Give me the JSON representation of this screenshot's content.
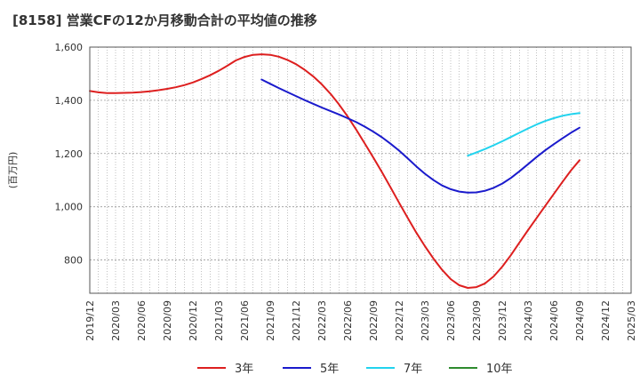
{
  "chart_data": {
    "type": "line",
    "title": "[8158]  営業CFの12か月移動合計の平均値の推移",
    "xlabel": "",
    "ylabel": "(百万円)",
    "ylim": [
      675,
      1600
    ],
    "yticks": [
      800,
      1000,
      1200,
      1400,
      1600
    ],
    "ytick_labels": [
      "800",
      "1,000",
      "1,200",
      "1,400",
      "1,600"
    ],
    "x_start": "2019/12",
    "x_end": "2025/03",
    "xtick_labels": [
      "2019/12",
      "2020/03",
      "2020/06",
      "2020/09",
      "2020/12",
      "2021/03",
      "2021/06",
      "2021/09",
      "2021/12",
      "2022/03",
      "2022/06",
      "2022/09",
      "2022/12",
      "2023/03",
      "2023/06",
      "2023/09",
      "2023/12",
      "2024/03",
      "2024/06",
      "2024/09",
      "2024/12",
      "2025/03"
    ],
    "grid": true,
    "legend_position": "bottom",
    "series": [
      {
        "name": "3年",
        "color": "#dd1f1f",
        "x": [
          "2019/12",
          "2020/01",
          "2020/02",
          "2020/03",
          "2020/04",
          "2020/05",
          "2020/06",
          "2020/07",
          "2020/08",
          "2020/09",
          "2020/10",
          "2020/11",
          "2020/12",
          "2021/01",
          "2021/02",
          "2021/03",
          "2021/04",
          "2021/05",
          "2021/06",
          "2021/07",
          "2021/08",
          "2021/09",
          "2021/10",
          "2021/11",
          "2021/12",
          "2022/01",
          "2022/02",
          "2022/03",
          "2022/04",
          "2022/05",
          "2022/06",
          "2022/07",
          "2022/08",
          "2022/09",
          "2022/10",
          "2022/11",
          "2022/12",
          "2023/01",
          "2023/02",
          "2023/03",
          "2023/04",
          "2023/05",
          "2023/06",
          "2023/07",
          "2023/08",
          "2023/09",
          "2023/10",
          "2023/11",
          "2023/12",
          "2024/01",
          "2024/02",
          "2024/03",
          "2024/04",
          "2024/05",
          "2024/06",
          "2024/07",
          "2024/08",
          "2024/09"
        ],
        "values": [
          1435,
          1430,
          1427,
          1427,
          1428,
          1429,
          1431,
          1434,
          1438,
          1443,
          1449,
          1457,
          1467,
          1480,
          1494,
          1511,
          1530,
          1550,
          1563,
          1571,
          1573,
          1571,
          1564,
          1552,
          1536,
          1515,
          1490,
          1460,
          1425,
          1385,
          1340,
          1290,
          1238,
          1185,
          1130,
          1073,
          1015,
          958,
          903,
          852,
          805,
          763,
          728,
          705,
          695,
          698,
          712,
          738,
          775,
          818,
          865,
          912,
          958,
          1003,
          1048,
          1093,
          1136,
          1175
        ]
      },
      {
        "name": "5年",
        "color": "#1a1acc",
        "x": [
          "2021/08",
          "2021/09",
          "2021/10",
          "2021/11",
          "2021/12",
          "2022/01",
          "2022/02",
          "2022/03",
          "2022/04",
          "2022/05",
          "2022/06",
          "2022/07",
          "2022/08",
          "2022/09",
          "2022/10",
          "2022/11",
          "2022/12",
          "2023/01",
          "2023/02",
          "2023/03",
          "2023/04",
          "2023/05",
          "2023/06",
          "2023/07",
          "2023/08",
          "2023/09",
          "2023/10",
          "2023/11",
          "2023/12",
          "2024/01",
          "2024/02",
          "2024/03",
          "2024/04",
          "2024/05",
          "2024/06",
          "2024/07",
          "2024/08",
          "2024/09"
        ],
        "values": [
          1478,
          1462,
          1446,
          1431,
          1416,
          1401,
          1387,
          1373,
          1360,
          1347,
          1333,
          1318,
          1301,
          1282,
          1261,
          1237,
          1211,
          1182,
          1152,
          1124,
          1100,
          1080,
          1066,
          1057,
          1053,
          1054,
          1060,
          1071,
          1087,
          1108,
          1133,
          1160,
          1187,
          1212,
          1235,
          1257,
          1278,
          1297
        ]
      },
      {
        "name": "7年",
        "color": "#22d3ee",
        "x": [
          "2023/08",
          "2023/09",
          "2023/10",
          "2023/11",
          "2023/12",
          "2024/01",
          "2024/02",
          "2024/03",
          "2024/04",
          "2024/05",
          "2024/06",
          "2024/07",
          "2024/08",
          "2024/09"
        ],
        "values": [
          1192,
          1204,
          1217,
          1231,
          1246,
          1262,
          1278,
          1294,
          1309,
          1322,
          1333,
          1342,
          1348,
          1352
        ]
      },
      {
        "name": "10年",
        "color": "#2e8b2e",
        "x": [],
        "values": []
      }
    ]
  }
}
